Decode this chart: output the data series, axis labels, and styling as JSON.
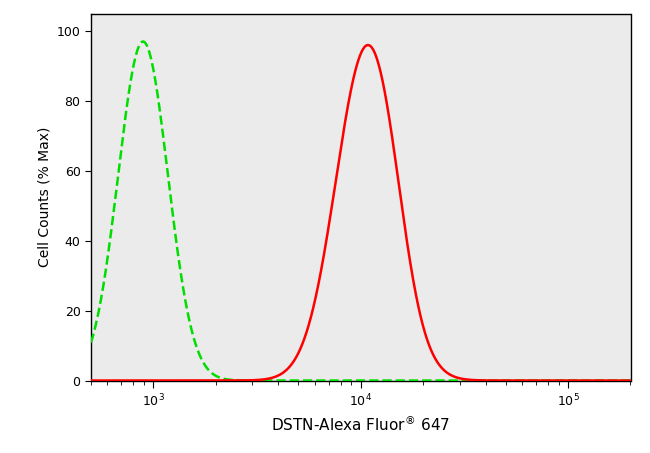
{
  "ylabel": "Cell Counts (% Max)",
  "xlabel": "DSTN-Alexa Fluor",
  "xlabel_suffix": "647",
  "xlim_log": [
    500,
    200000
  ],
  "ylim": [
    0,
    105
  ],
  "yticks": [
    0,
    20,
    40,
    60,
    80,
    100
  ],
  "background_color": "#ffffff",
  "plot_bg_color": "#ebebeb",
  "green_peak_log": 2.95,
  "green_sigma_log": 0.12,
  "green_peak_height": 97,
  "red_peak_log": 4.02,
  "red_sigma_log": 0.145,
  "red_peak_height": 96,
  "red_shoulder_log": 4.13,
  "red_shoulder_sigma": 0.09,
  "red_shoulder_height": 10,
  "red_color": "#ff0000",
  "green_color": "#00dd00",
  "line_width": 1.8
}
